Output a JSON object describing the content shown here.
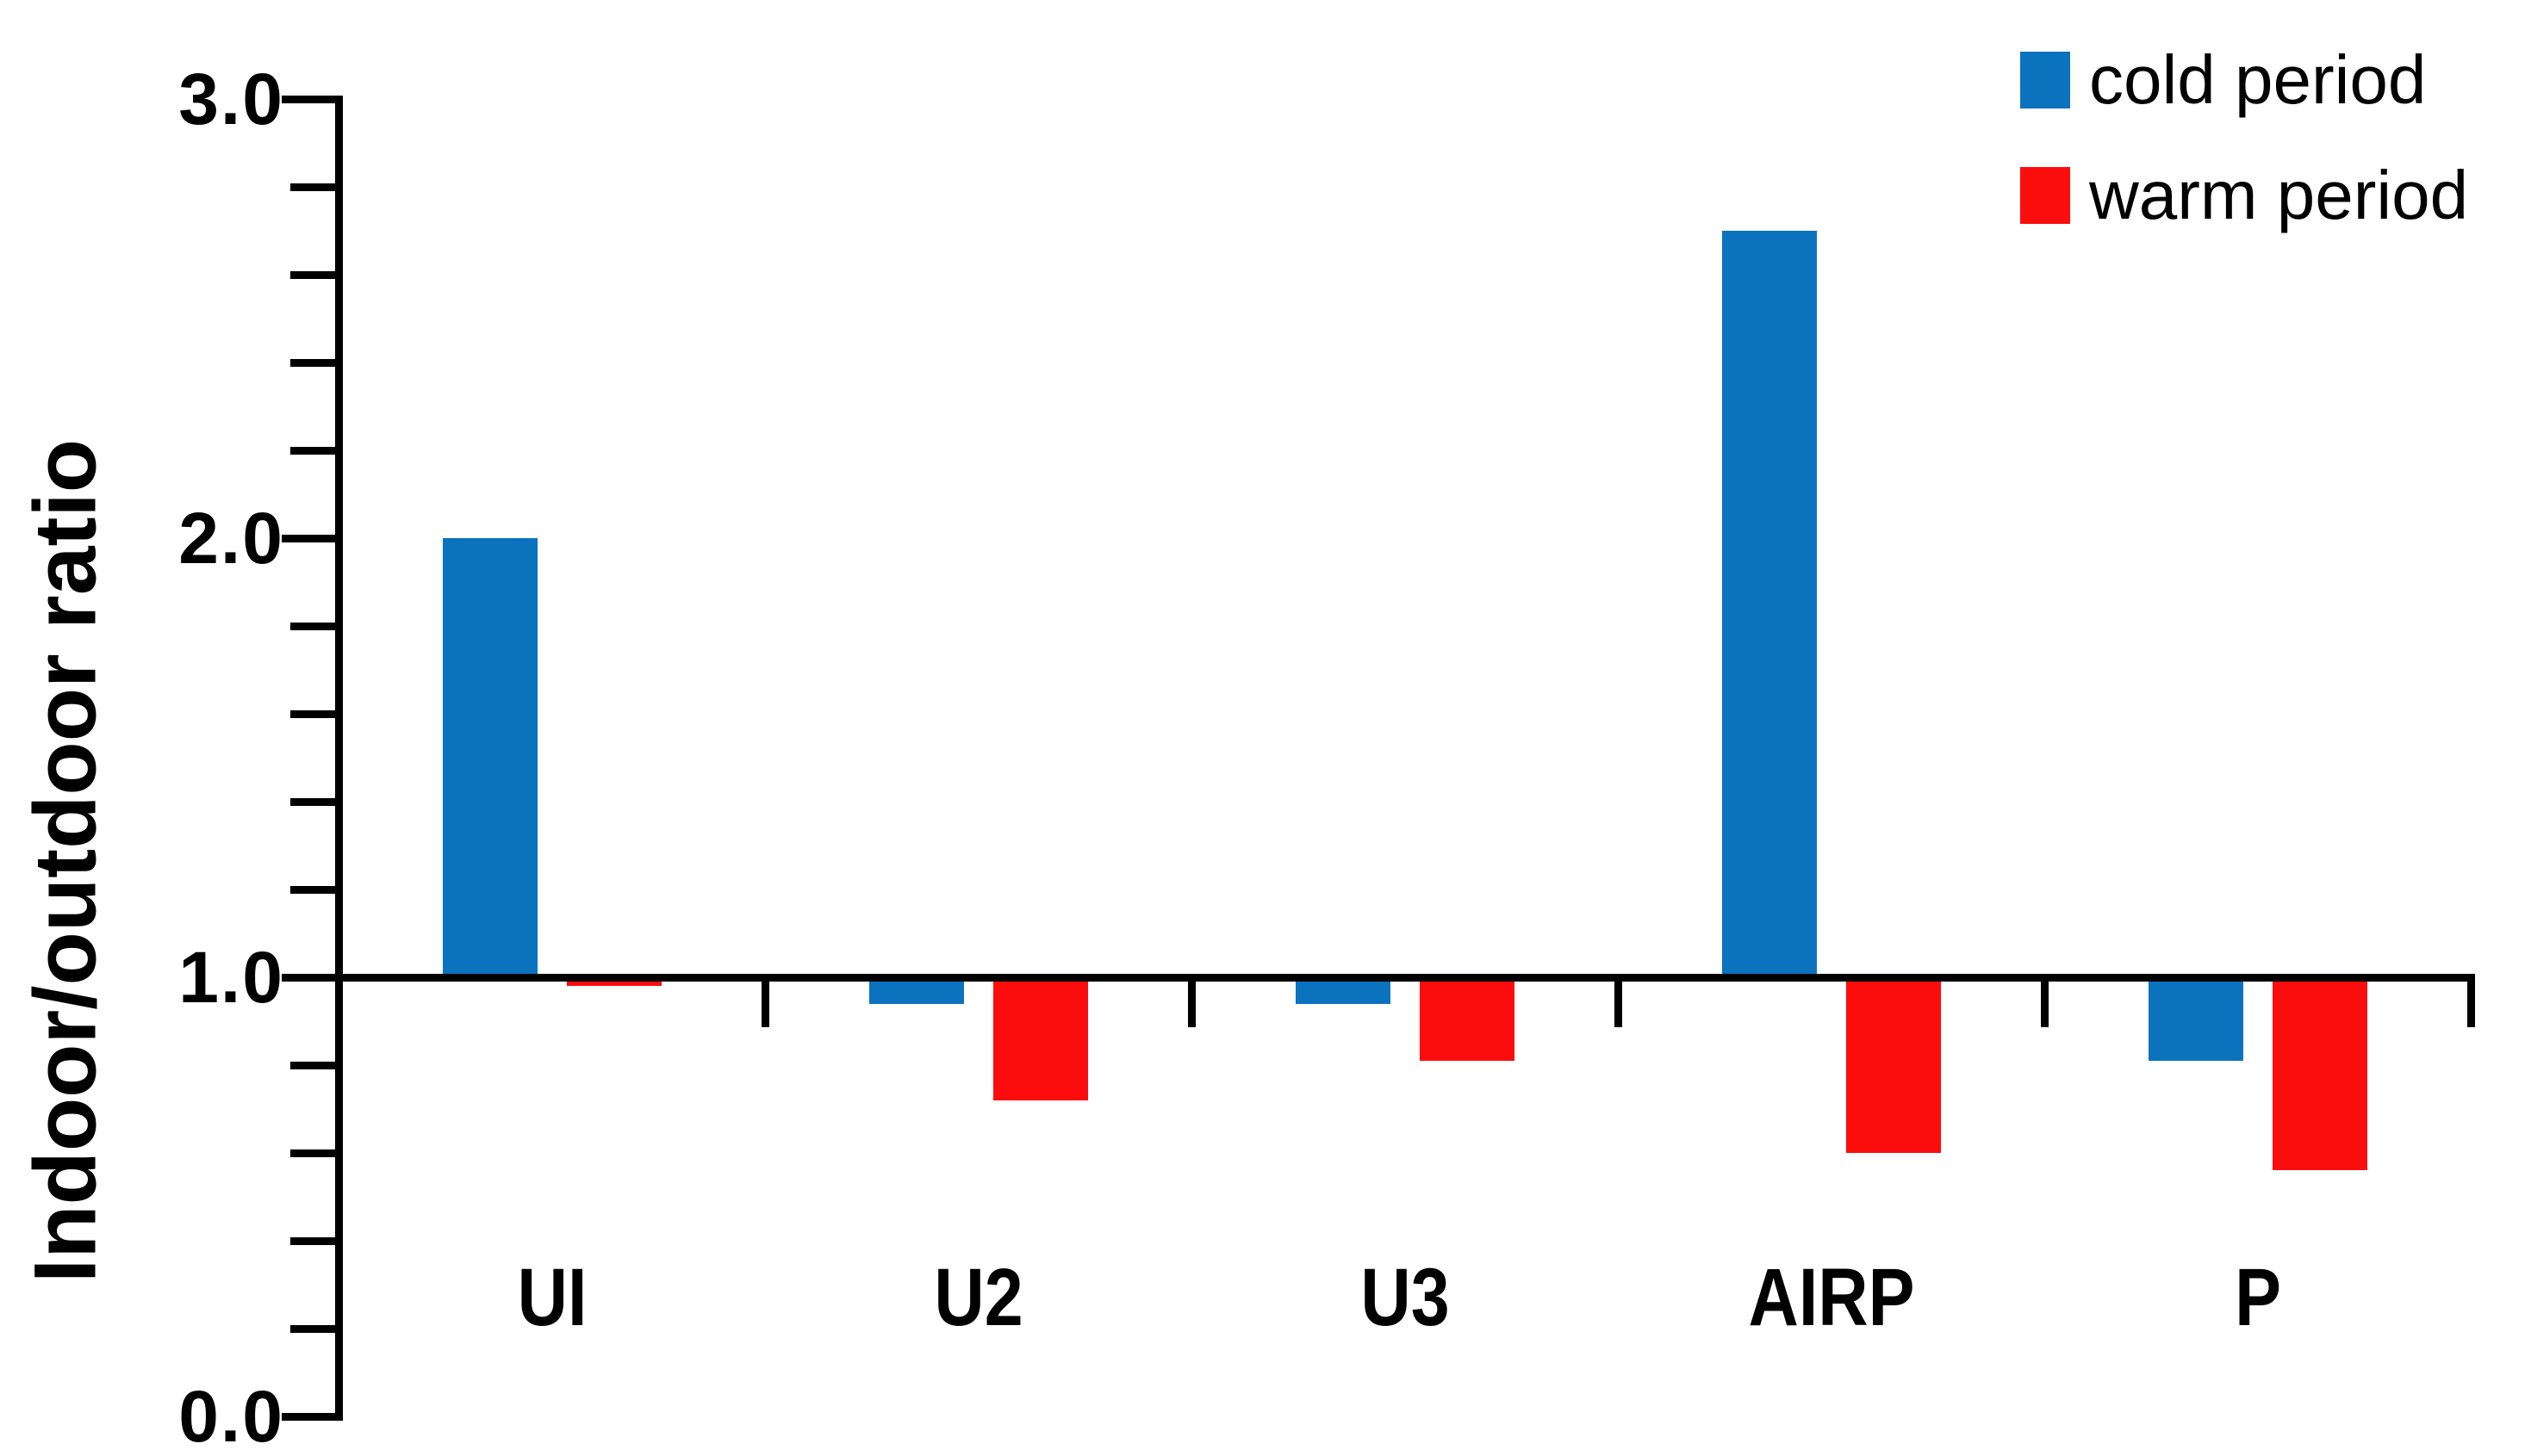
{
  "chart_data": {
    "type": "bar",
    "title": "",
    "categories": [
      "UI",
      "U2",
      "U3",
      "AIRP",
      "P"
    ],
    "series": [
      {
        "name": "cold period",
        "color": "#0b72be",
        "values": [
          2.0,
          0.94,
          0.94,
          2.7,
          0.81
        ]
      },
      {
        "name": "warm period",
        "color": "#fb0d0d",
        "values": [
          0.98,
          0.72,
          0.81,
          0.6,
          0.56
        ]
      }
    ],
    "xlabel": "",
    "ylabel": "Indoor/outdoor ratio",
    "ylim": [
      0.0,
      3.0
    ],
    "baseline": 1.0,
    "y_tick_labels": [
      "0.0",
      "1.0",
      "2.0",
      "3.0"
    ],
    "y_minor_tick_interval": 0.2,
    "grid": false,
    "legend_position": "top-right",
    "axis_color": "#000000",
    "text_color": "#000000"
  }
}
